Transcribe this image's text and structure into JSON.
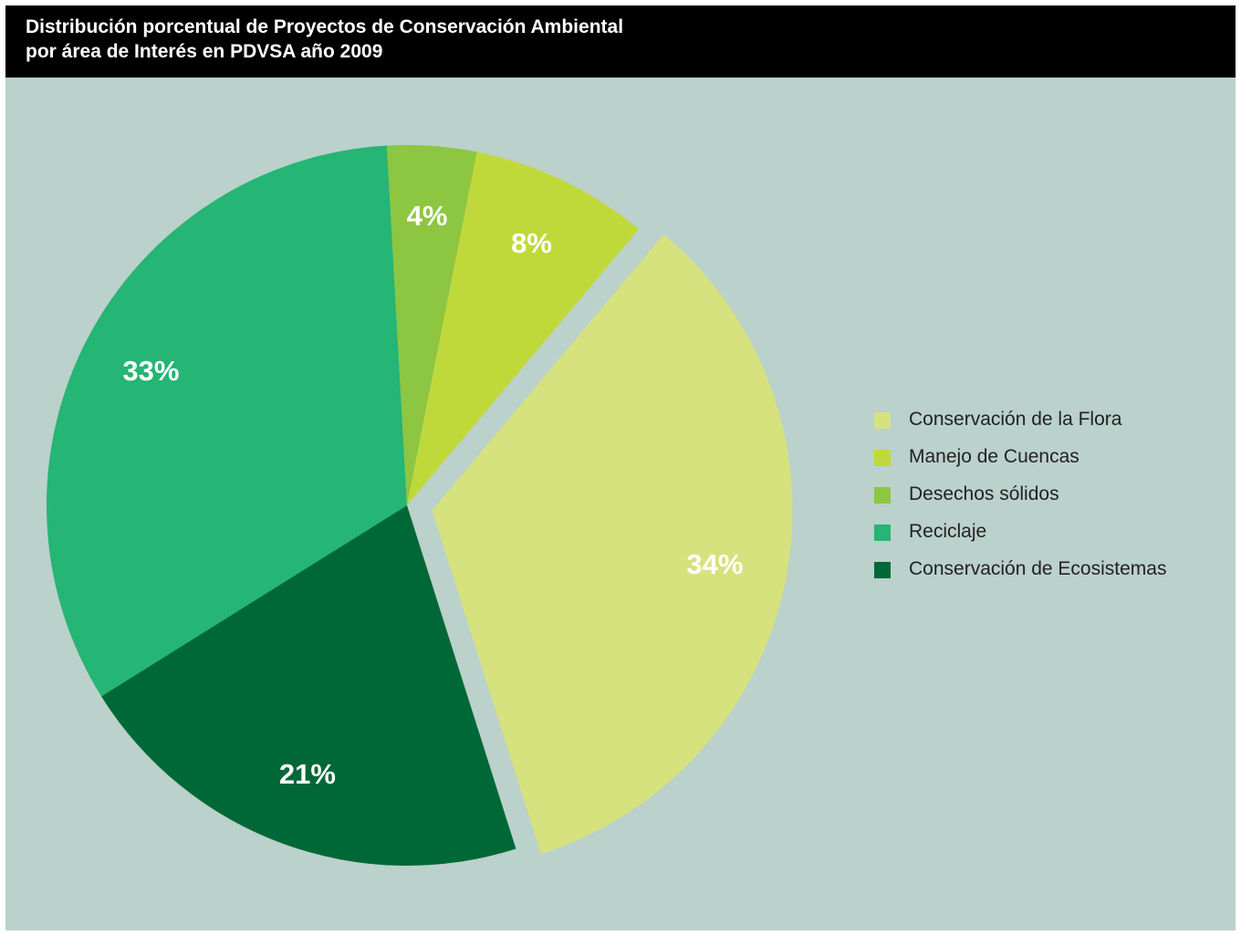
{
  "chart_data": {
    "type": "pie",
    "title": "Distribución porcentual de Proyectos de Conservación Ambiental",
    "subtitle": "por área de Interés en PDVSA año 2009",
    "legend_position": "right",
    "slices": [
      {
        "label": "Conservación de la Flora",
        "value": 34,
        "value_label": "34%",
        "color": "#d6e27d",
        "exploded": true
      },
      {
        "label": "Conservación de Ecosistemas",
        "value": 21,
        "value_label": "21%",
        "color": "#006837",
        "exploded": false
      },
      {
        "label": "Reciclaje",
        "value": 33,
        "value_label": "33%",
        "color": "#25b574",
        "exploded": false
      },
      {
        "label": "Desechos sólidos",
        "value": 4,
        "value_label": "4%",
        "color": "#8dc641",
        "exploded": false
      },
      {
        "label": "Manejo de Cuencas",
        "value": 8,
        "value_label": "8%",
        "color": "#c0d93a",
        "exploded": false
      }
    ],
    "legend": [
      {
        "label": "Conservación de la Flora",
        "color": "#d6e27d"
      },
      {
        "label": "Manejo de Cuencas",
        "color": "#c0d93a"
      },
      {
        "label": "Desechos sólidos",
        "color": "#8dc641"
      },
      {
        "label": "Reciclaje",
        "color": "#25b574"
      },
      {
        "label": "Conservación de Ecosistemas",
        "color": "#006837"
      }
    ]
  }
}
